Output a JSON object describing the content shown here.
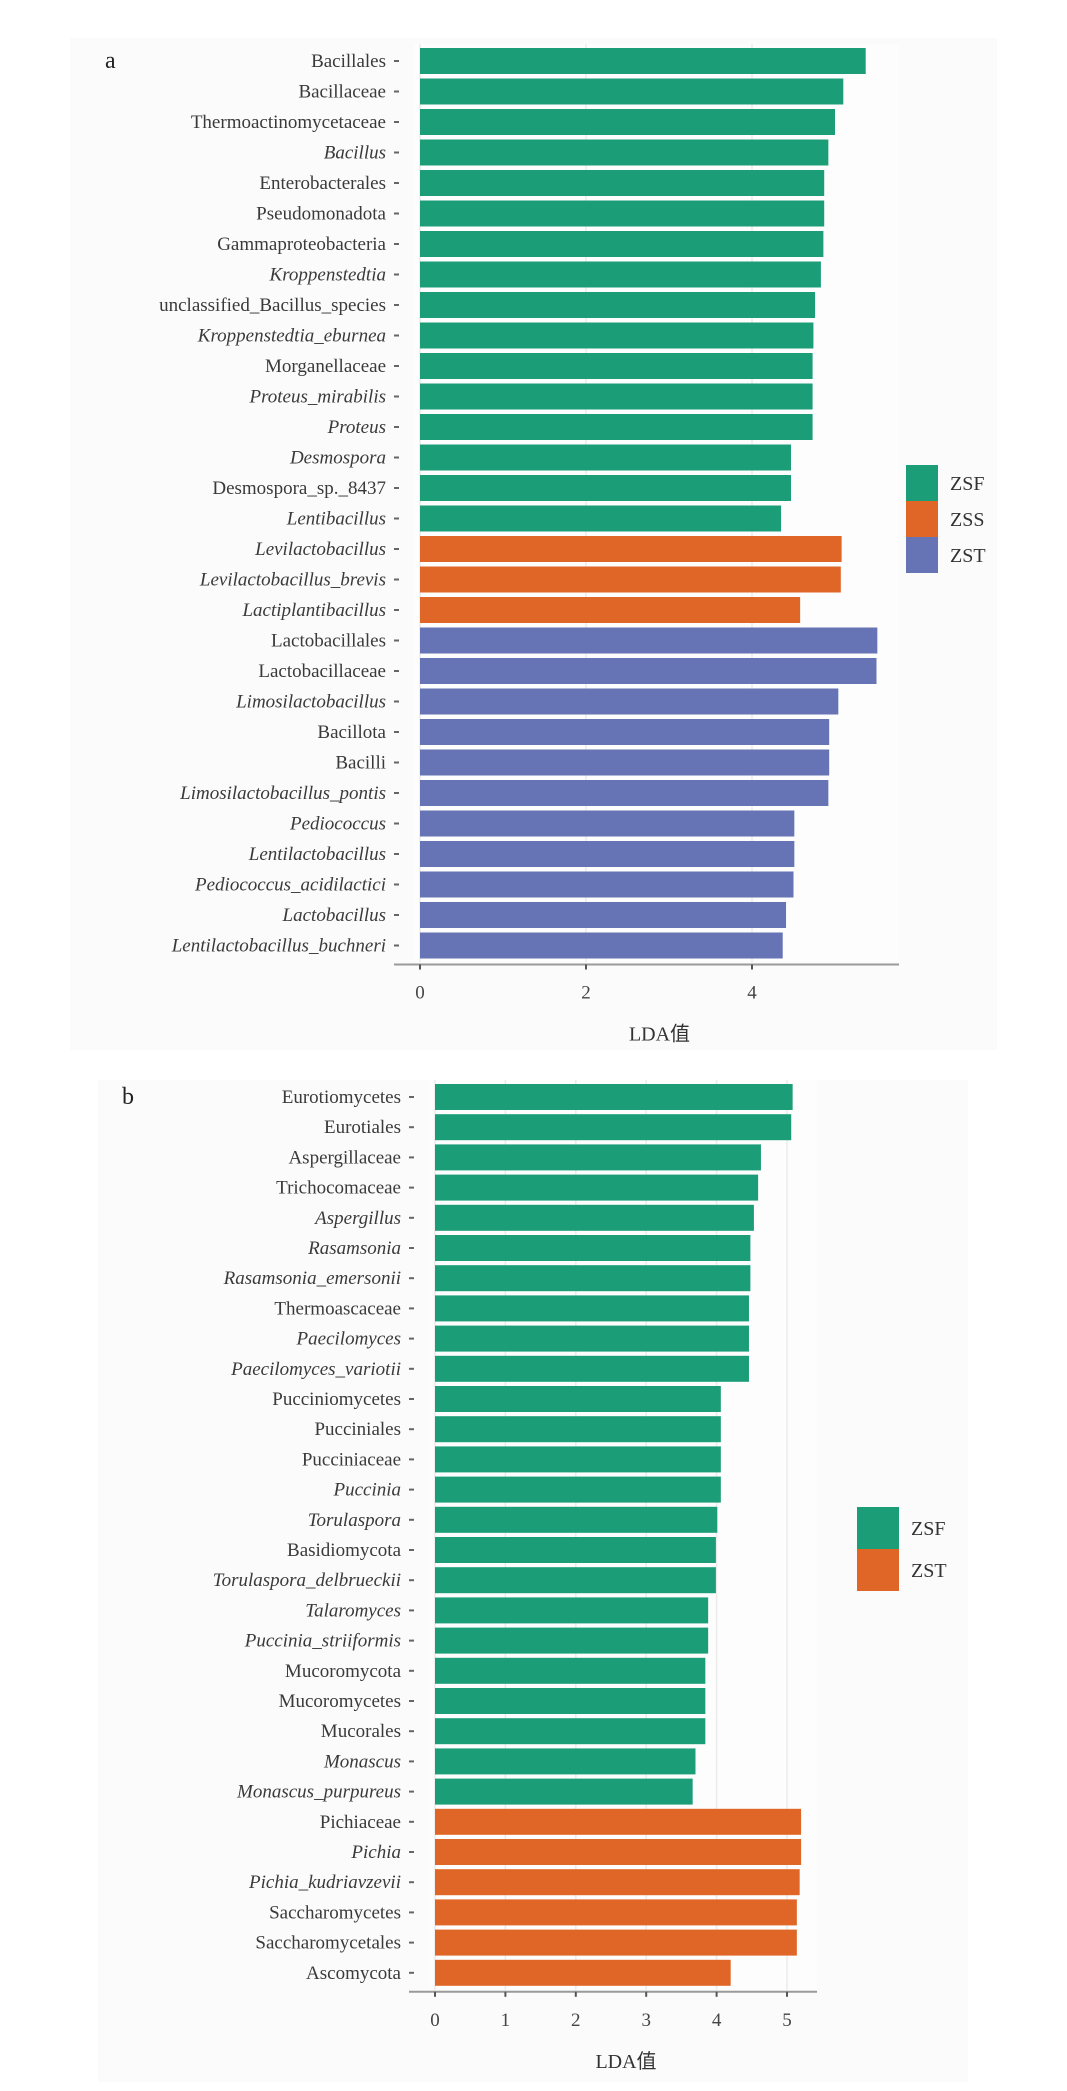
{
  "chart_data": [
    {
      "type": "bar",
      "orientation": "horizontal",
      "panel_label": "a",
      "xlabel": "LDA值",
      "ylabel": "",
      "xlim": [
        0,
        5.8
      ],
      "xticks": [
        0,
        2,
        4
      ],
      "grid": true,
      "legend_position": "right",
      "legend": [
        {
          "name": "ZSF",
          "color": "#1b9e77"
        },
        {
          "name": "ZSS",
          "color": "#e06627"
        },
        {
          "name": "ZST",
          "color": "#6673b4"
        }
      ],
      "categories": [
        {
          "label": "Bacillales",
          "italic": false,
          "group": "ZSF",
          "value": 5.37
        },
        {
          "label": "Bacillaceae",
          "italic": false,
          "group": "ZSF",
          "value": 5.1
        },
        {
          "label": "Thermoactinomycetaceae",
          "italic": false,
          "group": "ZSF",
          "value": 5.0
        },
        {
          "label": "Bacillus",
          "italic": true,
          "group": "ZSF",
          "value": 4.92
        },
        {
          "label": "Enterobacterales",
          "italic": false,
          "group": "ZSF",
          "value": 4.87
        },
        {
          "label": "Pseudomonadota",
          "italic": false,
          "group": "ZSF",
          "value": 4.87
        },
        {
          "label": "Gammaproteobacteria",
          "italic": false,
          "group": "ZSF",
          "value": 4.86
        },
        {
          "label": "Kroppenstedtia",
          "italic": true,
          "group": "ZSF",
          "value": 4.83
        },
        {
          "label": "unclassified_Bacillus_species",
          "italic": false,
          "group": "ZSF",
          "value": 4.76
        },
        {
          "label": "Kroppenstedtia_eburnea",
          "italic": true,
          "group": "ZSF",
          "value": 4.74
        },
        {
          "label": "Morganellaceae",
          "italic": false,
          "group": "ZSF",
          "value": 4.73
        },
        {
          "label": "Proteus_mirabilis",
          "italic": true,
          "group": "ZSF",
          "value": 4.73
        },
        {
          "label": "Proteus",
          "italic": true,
          "group": "ZSF",
          "value": 4.73
        },
        {
          "label": "Desmospora",
          "italic": true,
          "group": "ZSF",
          "value": 4.47
        },
        {
          "label": "Desmospora_sp._8437",
          "italic": false,
          "group": "ZSF",
          "value": 4.47
        },
        {
          "label": "Lentibacillus",
          "italic": true,
          "group": "ZSF",
          "value": 4.35
        },
        {
          "label": "Levilactobacillus",
          "italic": true,
          "group": "ZSS",
          "value": 5.08
        },
        {
          "label": "Levilactobacillus_brevis",
          "italic": true,
          "group": "ZSS",
          "value": 5.07
        },
        {
          "label": "Lactiplantibacillus",
          "italic": true,
          "group": "ZSS",
          "value": 4.58
        },
        {
          "label": "Lactobacillales",
          "italic": false,
          "group": "ZST",
          "value": 5.51
        },
        {
          "label": "Lactobacillaceae",
          "italic": false,
          "group": "ZST",
          "value": 5.5
        },
        {
          "label": "Limosilactobacillus",
          "italic": true,
          "group": "ZST",
          "value": 5.04
        },
        {
          "label": "Bacillota",
          "italic": false,
          "group": "ZST",
          "value": 4.93
        },
        {
          "label": "Bacilli",
          "italic": false,
          "group": "ZST",
          "value": 4.93
        },
        {
          "label": "Limosilactobacillus_pontis",
          "italic": true,
          "group": "ZST",
          "value": 4.92
        },
        {
          "label": "Pediococcus",
          "italic": true,
          "group": "ZST",
          "value": 4.51
        },
        {
          "label": "Lentilactobacillus",
          "italic": true,
          "group": "ZST",
          "value": 4.51
        },
        {
          "label": "Pediococcus_acidilactici",
          "italic": true,
          "group": "ZST",
          "value": 4.5
        },
        {
          "label": "Lactobacillus",
          "italic": true,
          "group": "ZST",
          "value": 4.41
        },
        {
          "label": "Lentilactobacillus_buchneri",
          "italic": true,
          "group": "ZST",
          "value": 4.37
        }
      ]
    },
    {
      "type": "bar",
      "orientation": "horizontal",
      "panel_label": "b",
      "xlabel": "LDA值",
      "ylabel": "",
      "xlim": [
        0,
        5.4
      ],
      "xticks": [
        0,
        1,
        2,
        3,
        4,
        5
      ],
      "grid": true,
      "legend_position": "right",
      "legend": [
        {
          "name": "ZSF",
          "color": "#1b9e77"
        },
        {
          "name": "ZST",
          "color": "#e06627"
        }
      ],
      "categories": [
        {
          "label": "Eurotiomycetes",
          "italic": false,
          "group": "ZSF",
          "value": 5.08
        },
        {
          "label": "Eurotiales",
          "italic": false,
          "group": "ZSF",
          "value": 5.06
        },
        {
          "label": "Aspergillaceae",
          "italic": false,
          "group": "ZSF",
          "value": 4.63
        },
        {
          "label": "Trichocomaceae",
          "italic": false,
          "group": "ZSF",
          "value": 4.59
        },
        {
          "label": "Aspergillus",
          "italic": true,
          "group": "ZSF",
          "value": 4.53
        },
        {
          "label": "Rasamsonia",
          "italic": true,
          "group": "ZSF",
          "value": 4.48
        },
        {
          "label": "Rasamsonia_emersonii",
          "italic": true,
          "group": "ZSF",
          "value": 4.48
        },
        {
          "label": "Thermoascaceae",
          "italic": false,
          "group": "ZSF",
          "value": 4.46
        },
        {
          "label": "Paecilomyces",
          "italic": true,
          "group": "ZSF",
          "value": 4.46
        },
        {
          "label": "Paecilomyces_variotii",
          "italic": true,
          "group": "ZSF",
          "value": 4.46
        },
        {
          "label": "Pucciniomycetes",
          "italic": false,
          "group": "ZSF",
          "value": 4.06
        },
        {
          "label": "Pucciniales",
          "italic": false,
          "group": "ZSF",
          "value": 4.06
        },
        {
          "label": "Pucciniaceae",
          "italic": false,
          "group": "ZSF",
          "value": 4.06
        },
        {
          "label": "Puccinia",
          "italic": true,
          "group": "ZSF",
          "value": 4.06
        },
        {
          "label": "Torulaspora",
          "italic": true,
          "group": "ZSF",
          "value": 4.01
        },
        {
          "label": "Basidiomycota",
          "italic": false,
          "group": "ZSF",
          "value": 3.99
        },
        {
          "label": "Torulaspora_delbrueckii",
          "italic": true,
          "group": "ZSF",
          "value": 3.99
        },
        {
          "label": "Talaromyces",
          "italic": true,
          "group": "ZSF",
          "value": 3.88
        },
        {
          "label": "Puccinia_striiformis",
          "italic": true,
          "group": "ZSF",
          "value": 3.88
        },
        {
          "label": "Mucoromycota",
          "italic": false,
          "group": "ZSF",
          "value": 3.84
        },
        {
          "label": "Mucoromycetes",
          "italic": false,
          "group": "ZSF",
          "value": 3.84
        },
        {
          "label": "Mucorales",
          "italic": false,
          "group": "ZSF",
          "value": 3.84
        },
        {
          "label": "Monascus",
          "italic": true,
          "group": "ZSF",
          "value": 3.7
        },
        {
          "label": "Monascus_purpureus",
          "italic": true,
          "group": "ZSF",
          "value": 3.66
        },
        {
          "label": "Pichiaceae",
          "italic": false,
          "group": "ZST",
          "value": 5.2
        },
        {
          "label": "Pichia",
          "italic": true,
          "group": "ZST",
          "value": 5.2
        },
        {
          "label": "Pichia_kudriavzevii",
          "italic": true,
          "group": "ZST",
          "value": 5.18
        },
        {
          "label": "Saccharomycetes",
          "italic": false,
          "group": "ZST",
          "value": 5.14
        },
        {
          "label": "Saccharomycetales",
          "italic": false,
          "group": "ZST",
          "value": 5.14
        },
        {
          "label": "Ascomycota",
          "italic": false,
          "group": "ZST",
          "value": 4.2
        }
      ]
    }
  ]
}
